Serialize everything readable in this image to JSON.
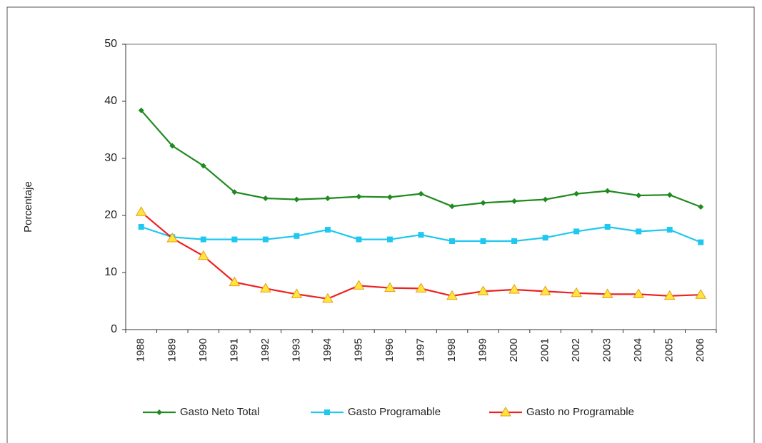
{
  "chart_data": {
    "type": "line",
    "y_label": "Porcentaje",
    "categories": [
      "1988",
      "1989",
      "1990",
      "1991",
      "1992",
      "1993",
      "1994",
      "1995",
      "1996",
      "1997",
      "1998",
      "1999",
      "2000",
      "2001",
      "2002",
      "2003",
      "2004",
      "2005",
      "2006"
    ],
    "series": [
      {
        "name": "Gasto Neto Total",
        "color": "#1f8a1f",
        "marker": "diamond",
        "values": [
          38.4,
          32.2,
          28.7,
          24.1,
          23.0,
          22.8,
          23.0,
          23.3,
          23.2,
          23.8,
          21.6,
          22.2,
          22.5,
          22.8,
          23.8,
          24.3,
          23.5,
          23.6,
          21.5
        ]
      },
      {
        "name": "Gasto Programable",
        "color": "#1ec8f0",
        "marker": "square",
        "values": [
          18.0,
          16.2,
          15.8,
          15.8,
          15.8,
          16.4,
          17.5,
          15.8,
          15.8,
          16.6,
          15.5,
          15.5,
          15.5,
          16.1,
          17.2,
          18.0,
          17.2,
          17.5,
          15.3
        ]
      },
      {
        "name": "Gasto no Programable",
        "color": "#ee2020",
        "marker": "triangle",
        "values": [
          20.6,
          16.0,
          12.9,
          8.3,
          7.2,
          6.2,
          5.4,
          7.7,
          7.3,
          7.2,
          5.9,
          6.7,
          7.0,
          6.7,
          6.4,
          6.2,
          6.2,
          5.9,
          6.1
        ]
      }
    ],
    "ylim": [
      0,
      50
    ],
    "yticks": [
      0,
      10,
      20,
      30,
      40,
      50
    ],
    "grid": false,
    "legend": "bottom"
  }
}
